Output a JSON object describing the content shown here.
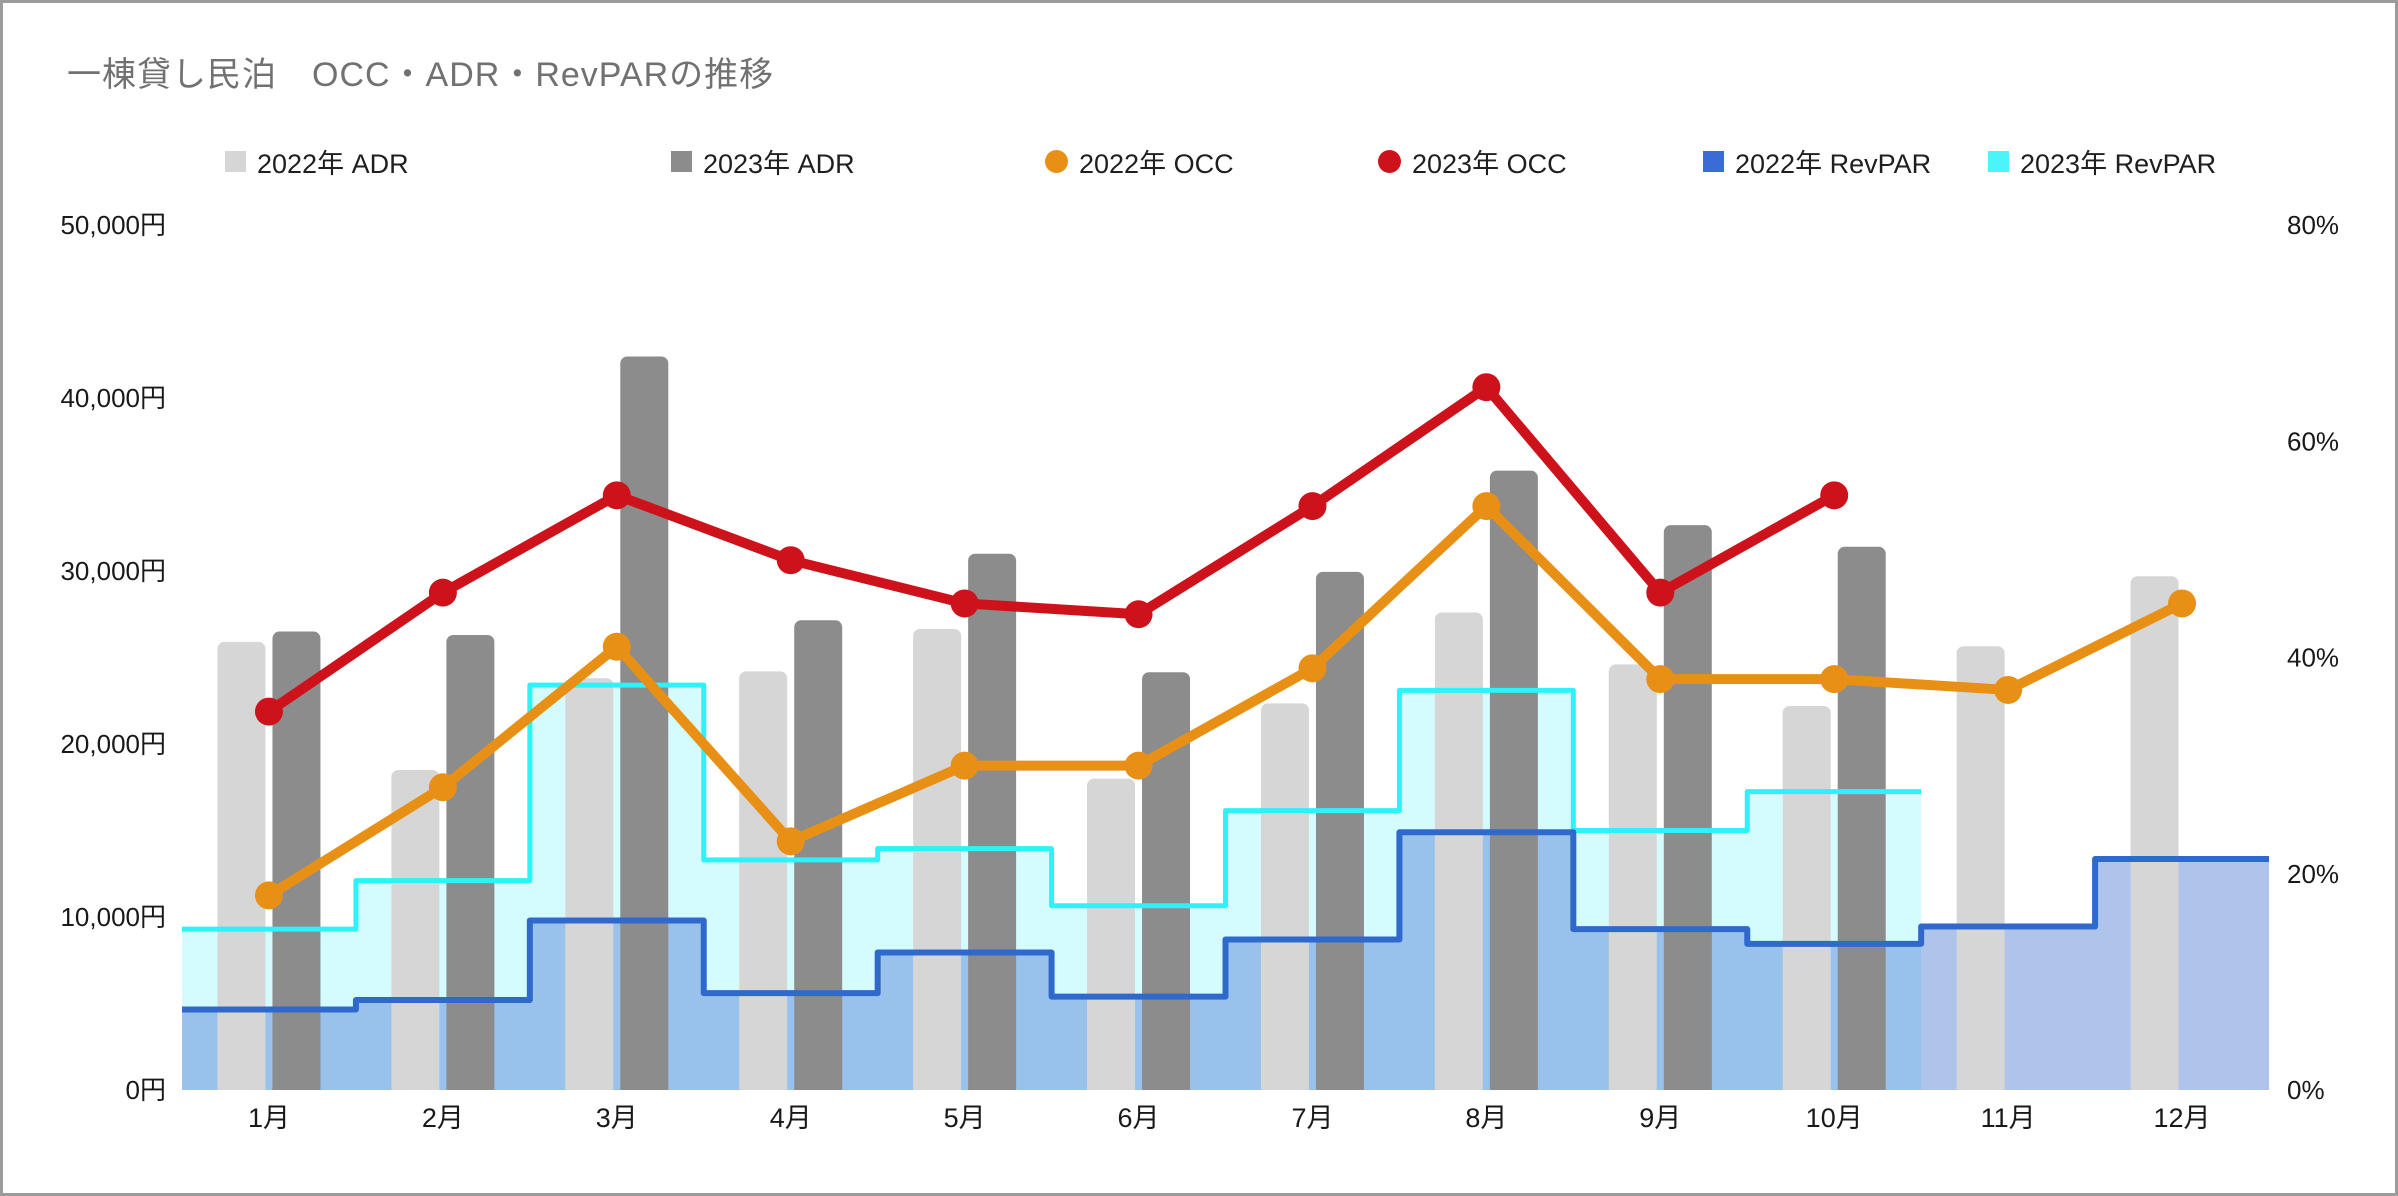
{
  "title": "一棟貸し民泊　OCC・ADR・RevPARの推移",
  "chart_data": {
    "type": "combo",
    "title": "一棟貸し民泊　OCC・ADR・RevPARの推移",
    "categories": [
      "1月",
      "2月",
      "3月",
      "4月",
      "5月",
      "6月",
      "7月",
      "8月",
      "9月",
      "10月",
      "11月",
      "12月"
    ],
    "axes": {
      "left": {
        "title": "",
        "unit": "円",
        "min": 0,
        "max": 50000,
        "tick_values": [
          0,
          10000,
          20000,
          30000,
          40000,
          50000
        ],
        "tick_labels": [
          "0円",
          "10,000円",
          "20,000円",
          "30,000円",
          "40,000円",
          "50,000円"
        ]
      },
      "right": {
        "title": "",
        "unit": "%",
        "min": 0,
        "max": 80,
        "tick_values": [
          0,
          20,
          40,
          60,
          80
        ],
        "tick_labels": [
          "0%",
          "20%",
          "40%",
          "60%",
          "80%"
        ]
      }
    },
    "grid": "off",
    "legend_position": "top",
    "series": [
      {
        "name": "2022年 ADR",
        "type": "bar",
        "axis": "left",
        "color": "#d6d6d6",
        "values": [
          25900,
          18500,
          23800,
          24200,
          26650,
          18000,
          22350,
          27600,
          24600,
          22200,
          25650,
          29700
        ]
      },
      {
        "name": "2023年 ADR",
        "type": "bar",
        "axis": "left",
        "color": "#8c8c8c",
        "values": [
          26500,
          26300,
          42400,
          27150,
          31000,
          24150,
          29950,
          35800,
          32650,
          31400,
          null,
          null
        ]
      },
      {
        "name": "2022年 OCC",
        "type": "line",
        "axis": "right",
        "color": "#e89015",
        "values": [
          18,
          28,
          41,
          23,
          30,
          30,
          39,
          54,
          38,
          38,
          37,
          45
        ]
      },
      {
        "name": "2023年 OCC",
        "type": "line",
        "axis": "right",
        "color": "#ce121c",
        "values": [
          35,
          46,
          55,
          49,
          45,
          44,
          54,
          65,
          46,
          55,
          null,
          null
        ]
      },
      {
        "name": "2022年 RevPAR",
        "type": "steppedArea",
        "axis": "left",
        "color": "#3069cc",
        "fill": "rgba(84,130,212,0.47)",
        "legend_color": "#3a6bd6",
        "values": [
          4650,
          5200,
          9800,
          5600,
          7950,
          5400,
          8700,
          14900,
          9300,
          8450,
          9450,
          13350
        ]
      },
      {
        "name": "2023年 RevPAR",
        "type": "steppedArea",
        "axis": "left",
        "color": "#2df2fa",
        "fill": "rgba(0,238,255,0.17)",
        "legend_color": "#4af4fb",
        "values": [
          9300,
          12100,
          23400,
          13300,
          13950,
          10650,
          16150,
          23100,
          15000,
          17250,
          null,
          null
        ]
      }
    ]
  },
  "styles": {
    "title_color": "#717171",
    "axis_label_color": "#191919",
    "frame_border_color": "#9b9b9b",
    "background": "#ffffff"
  }
}
